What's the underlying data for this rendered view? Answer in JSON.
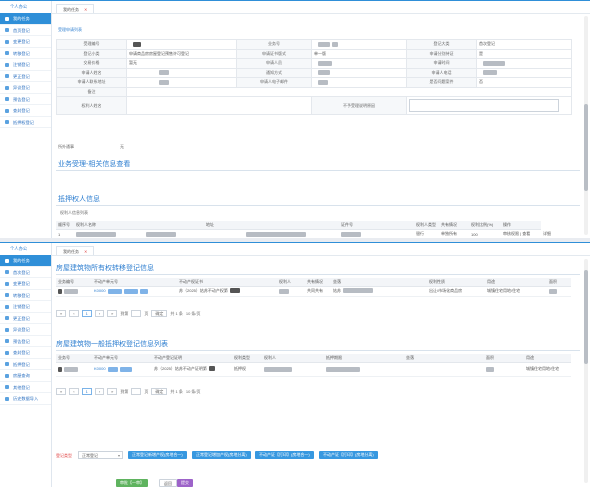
{
  "top": {
    "sidebar": {
      "header": "个人办公",
      "items": [
        "我的任务",
        "首页登记",
        "变更登记",
        "转移登记",
        "注销登记",
        "更正登记",
        "异议登记",
        "预告登记",
        "查封登记",
        "抵押权登记"
      ]
    },
    "tab": {
      "label": "我的任务",
      "close": "✕"
    },
    "breadcrumb": "受理申请列表",
    "form": {
      "r1": [
        "受理编号",
        "",
        "业务号",
        "",
        "登记大类",
        "首次登记"
      ],
      "r2": [
        "登记小类",
        "申请商品房房屋登记预售许可登记",
        "申请证书版式",
        "单一版",
        "申请分别持证",
        "是"
      ],
      "r3": [
        "交易价格",
        "暂无",
        "申请人员",
        "",
        "申请时间",
        ""
      ],
      "r4": [
        "申请人姓名",
        "",
        "通知方式",
        "",
        "申请人电话",
        ""
      ],
      "r5": [
        "申请人联系地址",
        "",
        "申请人电子邮件",
        "",
        "是否问题案件",
        "否"
      ],
      "r6": [
        "备注",
        ""
      ],
      "r7": [
        "权利人姓名",
        "",
        "不予受理说明原因",
        ""
      ],
      "r8": [
        "所外通事",
        "无"
      ]
    },
    "section1": "业务受理-相关信息查看",
    "section2": "抵押权人信息",
    "sub_tab": "权利人信息列表",
    "mortgagee_table": {
      "headers": [
        "顺序号",
        "权利人名称",
        "",
        "地址",
        "",
        "证件号",
        "",
        "权利人类型",
        "共有情况",
        "权利比例(%)",
        "操作"
      ],
      "row": [
        "1",
        "",
        "",
        "",
        "",
        "",
        "",
        "银行",
        "单独所有",
        "100",
        "审核权限 | 查看",
        "详细"
      ]
    }
  },
  "bottom": {
    "sidebar": {
      "header": "个人办公",
      "items": [
        "我的任务",
        "首次登记",
        "变更登记",
        "转移登记",
        "注销登记",
        "更正登记",
        "异议登记",
        "预告登记",
        "查封登记",
        "抵押登记",
        "房屋查询",
        "其他登记",
        "历史数据导入"
      ]
    },
    "tab": {
      "label": "我的任务",
      "close": "✕"
    },
    "section1": "房屋建筑物所有权转移登记信息",
    "table1": {
      "headers": [
        "业务编号",
        "不动产单元号",
        "不动产权证书",
        "权利人",
        "共有情况",
        "坐落",
        "权利性质",
        "用途",
        "面积"
      ],
      "row": {
        "ywbh": "",
        "dyh": "K0000",
        "cert": "苏（2025）姑苏不动产权第",
        "qlr": "",
        "gy": "共同共有",
        "zl": "姑苏",
        "xz": "出让/市场化商品房",
        "yt": "城镇住宅用地/住宅",
        "mj": ""
      }
    },
    "pager": {
      "first": "«",
      "prev": "‹",
      "current": "1",
      "next": "›",
      "last": "»",
      "goto": "到第",
      "page": "页",
      "confirm": "确定",
      "total": "共 1 条",
      "size": "10 条/页"
    },
    "section2": "房屋建筑物一般抵押权登记信息列表",
    "table2": {
      "headers": [
        "业务号",
        "不动产单元号",
        "不动产登记证明",
        "权利类型",
        "权利人",
        "抵押期限",
        "坐落",
        "面积",
        "用途"
      ],
      "row": {
        "ywh": "",
        "dyh": "K0000",
        "cert": "苏（2025）姑苏不动产证明第",
        "lx": "抵押权",
        "qlr": "",
        "qx": "",
        "zl": "",
        "mj": "",
        "yt": "城镇住宅用地/住宅"
      }
    },
    "reg_type_label": "登记类型",
    "reg_type_value": "正常登记",
    "actions": [
      "正常登记新增产权(房地合一)",
      "正常登记增加产权(房地分离)",
      "不动产证【打印】(房地合一)",
      "不动产证【打印】(房地分离)"
    ],
    "bottom_buttons": [
      "审批【一审】",
      "返回",
      "提交"
    ]
  }
}
